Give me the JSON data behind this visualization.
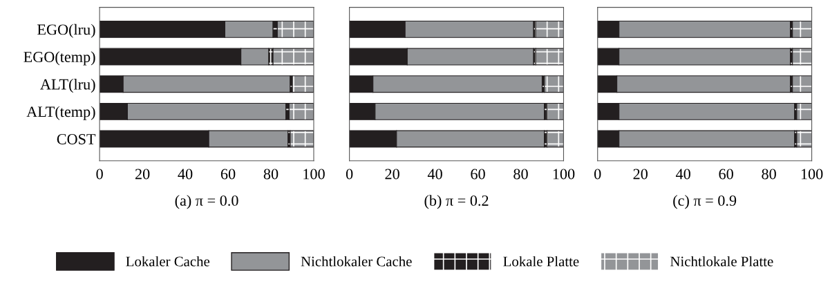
{
  "chart_data": [
    {
      "type": "bar",
      "orientation": "horizontal",
      "stacked": true,
      "title": "(a) π = 0.0",
      "categories": [
        "EGO(lru)",
        "EGO(temp)",
        "ALT(lru)",
        "ALT(temp)",
        "COST"
      ],
      "xlim": [
        0,
        100
      ],
      "xticks": [
        0,
        20,
        40,
        60,
        80,
        100
      ],
      "grid": false,
      "legend": "bottom",
      "series": [
        {
          "name": "Lokaler Cache",
          "color": "#231f20",
          "values": [
            58.5,
            66,
            11,
            13,
            51
          ]
        },
        {
          "name": "Nichtlokaler Cache",
          "color": "#939598",
          "values": [
            22.5,
            13,
            78,
            74,
            37
          ]
        },
        {
          "name": "Lokale Platte",
          "color": "#231f20",
          "values": [
            2,
            2,
            1,
            1.5,
            1
          ]
        },
        {
          "name": "Nichtlokale Platte",
          "color": "#939598",
          "values": [
            17,
            19,
            10,
            11.5,
            11
          ]
        }
      ]
    },
    {
      "type": "bar",
      "orientation": "horizontal",
      "stacked": true,
      "title": "(b) π = 0.2",
      "categories": [
        null,
        null,
        null,
        null,
        null
      ],
      "xlim": [
        0,
        100
      ],
      "xticks": [
        0,
        20,
        40,
        60,
        80,
        100
      ],
      "grid": false,
      "tick_labels": "x",
      "series": [
        {
          "color": "#231f20",
          "values": [
            26,
            27,
            11,
            12,
            22
          ]
        },
        {
          "color": "#939598",
          "values": [
            60,
            59,
            79,
            79,
            69
          ]
        },
        {
          "color": "#231f20",
          "values": [
            1,
            1,
            1,
            1.3,
            1.3
          ]
        },
        {
          "color": "#939598",
          "values": [
            13,
            13,
            9,
            7.7,
            7.7
          ]
        }
      ]
    },
    {
      "type": "bar",
      "orientation": "horizontal",
      "stacked": true,
      "title": "(c) π = 0.9",
      "categories": [
        null,
        null,
        null,
        null,
        null
      ],
      "xlim": [
        0,
        100
      ],
      "xticks": [
        0,
        20,
        40,
        60,
        80,
        100
      ],
      "grid": false,
      "tick_labels": "x",
      "series": [
        {
          "color": "#231f20",
          "values": [
            10,
            10,
            9,
            10,
            10
          ]
        },
        {
          "color": "#939598",
          "values": [
            80,
            80,
            81,
            82,
            82
          ]
        },
        {
          "color": "#231f20",
          "values": [
            1,
            1,
            1,
            1,
            1
          ]
        },
        {
          "color": "#939598",
          "values": [
            9,
            9,
            9,
            7,
            7
          ]
        }
      ]
    }
  ]
}
